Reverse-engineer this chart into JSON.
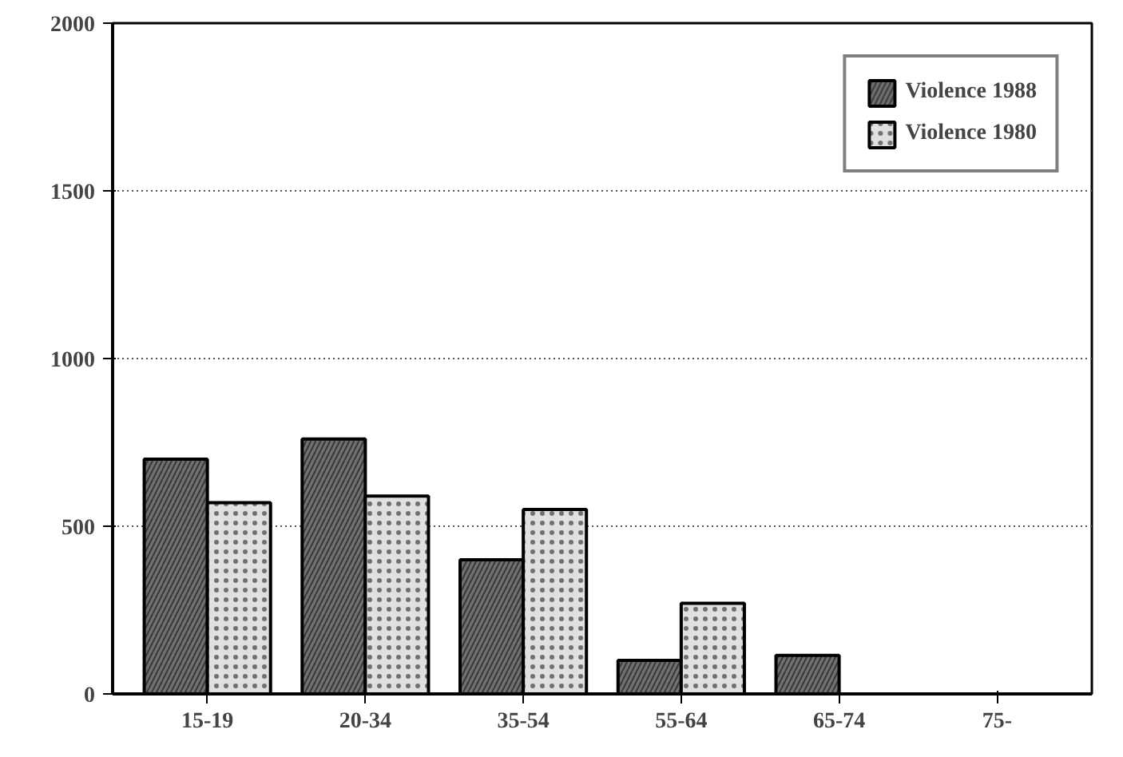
{
  "chart_data": {
    "type": "bar",
    "categories": [
      "15-19",
      "20-34",
      "35-54",
      "55-64",
      "65-74",
      "75-"
    ],
    "series": [
      {
        "name": "Violence 1988",
        "color": "#707070",
        "values": [
          700,
          760,
          400,
          100,
          115,
          null
        ]
      },
      {
        "name": "Violence 1980",
        "color": "#e0e0e0",
        "values": [
          570,
          590,
          550,
          270,
          null,
          null
        ]
      }
    ],
    "ylim": [
      0,
      2000
    ],
    "yticks": [
      0,
      500,
      1000,
      1500,
      2000
    ],
    "grid": "y",
    "legend": "top right"
  }
}
